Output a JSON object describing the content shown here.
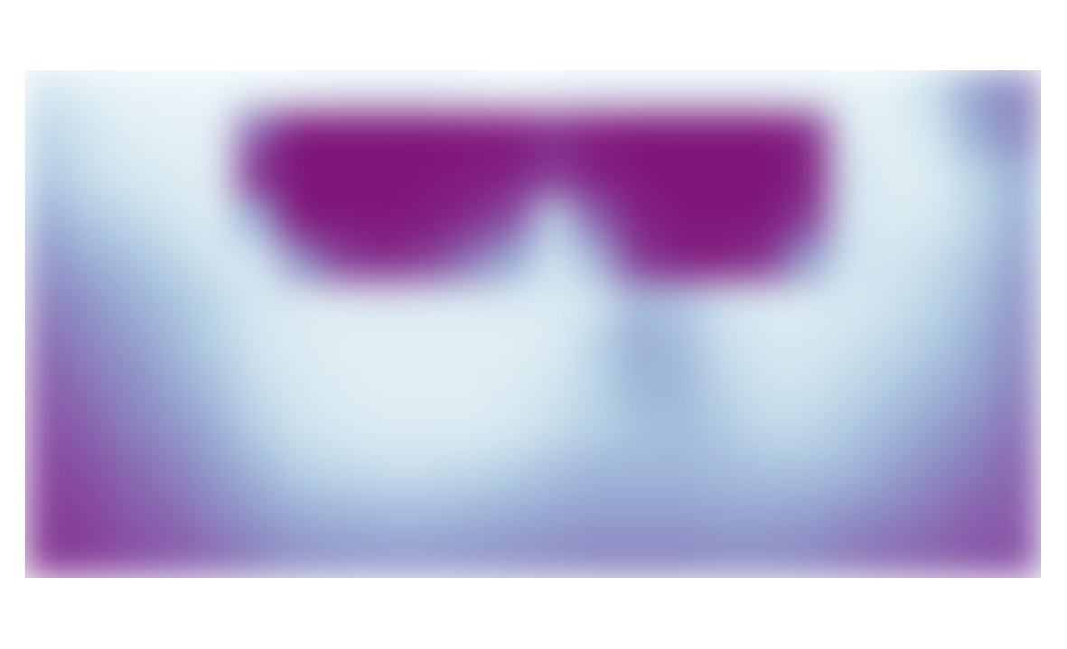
{
  "chart_data": {
    "type": "heatmap",
    "tick_labels": false,
    "grid": false,
    "zlim": [
      0,
      100
    ],
    "cells": [
      [
        20,
        12,
        8,
        6,
        5,
        8,
        8,
        10,
        10,
        10,
        8,
        5,
        8,
        10,
        10,
        10,
        10,
        10,
        10,
        8,
        10,
        25,
        50,
        60
      ],
      [
        30,
        20,
        12,
        10,
        10,
        70,
        95,
        95,
        95,
        95,
        92,
        90,
        85,
        90,
        95,
        95,
        95,
        95,
        85,
        15,
        10,
        20,
        45,
        60
      ],
      [
        35,
        25,
        18,
        15,
        12,
        85,
        95,
        95,
        95,
        92,
        90,
        88,
        80,
        88,
        92,
        95,
        95,
        95,
        88,
        20,
        12,
        15,
        30,
        45
      ],
      [
        45,
        35,
        28,
        20,
        15,
        45,
        92,
        92,
        92,
        90,
        85,
        75,
        30,
        70,
        88,
        92,
        92,
        92,
        80,
        20,
        15,
        18,
        30,
        45
      ],
      [
        55,
        45,
        38,
        30,
        20,
        18,
        55,
        80,
        85,
        80,
        65,
        45,
        20,
        40,
        80,
        88,
        88,
        82,
        50,
        20,
        20,
        25,
        35,
        50
      ],
      [
        62,
        55,
        45,
        38,
        28,
        18,
        15,
        15,
        15,
        15,
        15,
        15,
        15,
        20,
        40,
        35,
        20,
        15,
        15,
        18,
        22,
        30,
        40,
        55
      ],
      [
        68,
        60,
        52,
        42,
        32,
        20,
        15,
        12,
        12,
        12,
        12,
        12,
        15,
        30,
        45,
        40,
        25,
        18,
        18,
        22,
        28,
        35,
        45,
        58
      ],
      [
        72,
        65,
        58,
        48,
        38,
        25,
        18,
        14,
        12,
        12,
        12,
        15,
        20,
        30,
        42,
        42,
        30,
        22,
        22,
        28,
        35,
        42,
        50,
        62
      ],
      [
        75,
        70,
        62,
        55,
        45,
        32,
        22,
        18,
        15,
        15,
        15,
        18,
        25,
        32,
        38,
        40,
        35,
        28,
        28,
        35,
        42,
        50,
        58,
        66
      ],
      [
        78,
        75,
        68,
        62,
        52,
        42,
        32,
        28,
        25,
        25,
        28,
        32,
        38,
        42,
        42,
        42,
        40,
        38,
        38,
        42,
        50,
        58,
        64,
        70
      ],
      [
        80,
        78,
        72,
        68,
        60,
        52,
        45,
        42,
        40,
        40,
        42,
        45,
        48,
        50,
        50,
        50,
        48,
        48,
        50,
        55,
        60,
        65,
        70,
        72
      ],
      [
        82,
        80,
        76,
        72,
        68,
        62,
        56,
        54,
        52,
        52,
        54,
        56,
        58,
        60,
        60,
        60,
        58,
        58,
        60,
        64,
        68,
        70,
        74,
        75
      ]
    ]
  }
}
